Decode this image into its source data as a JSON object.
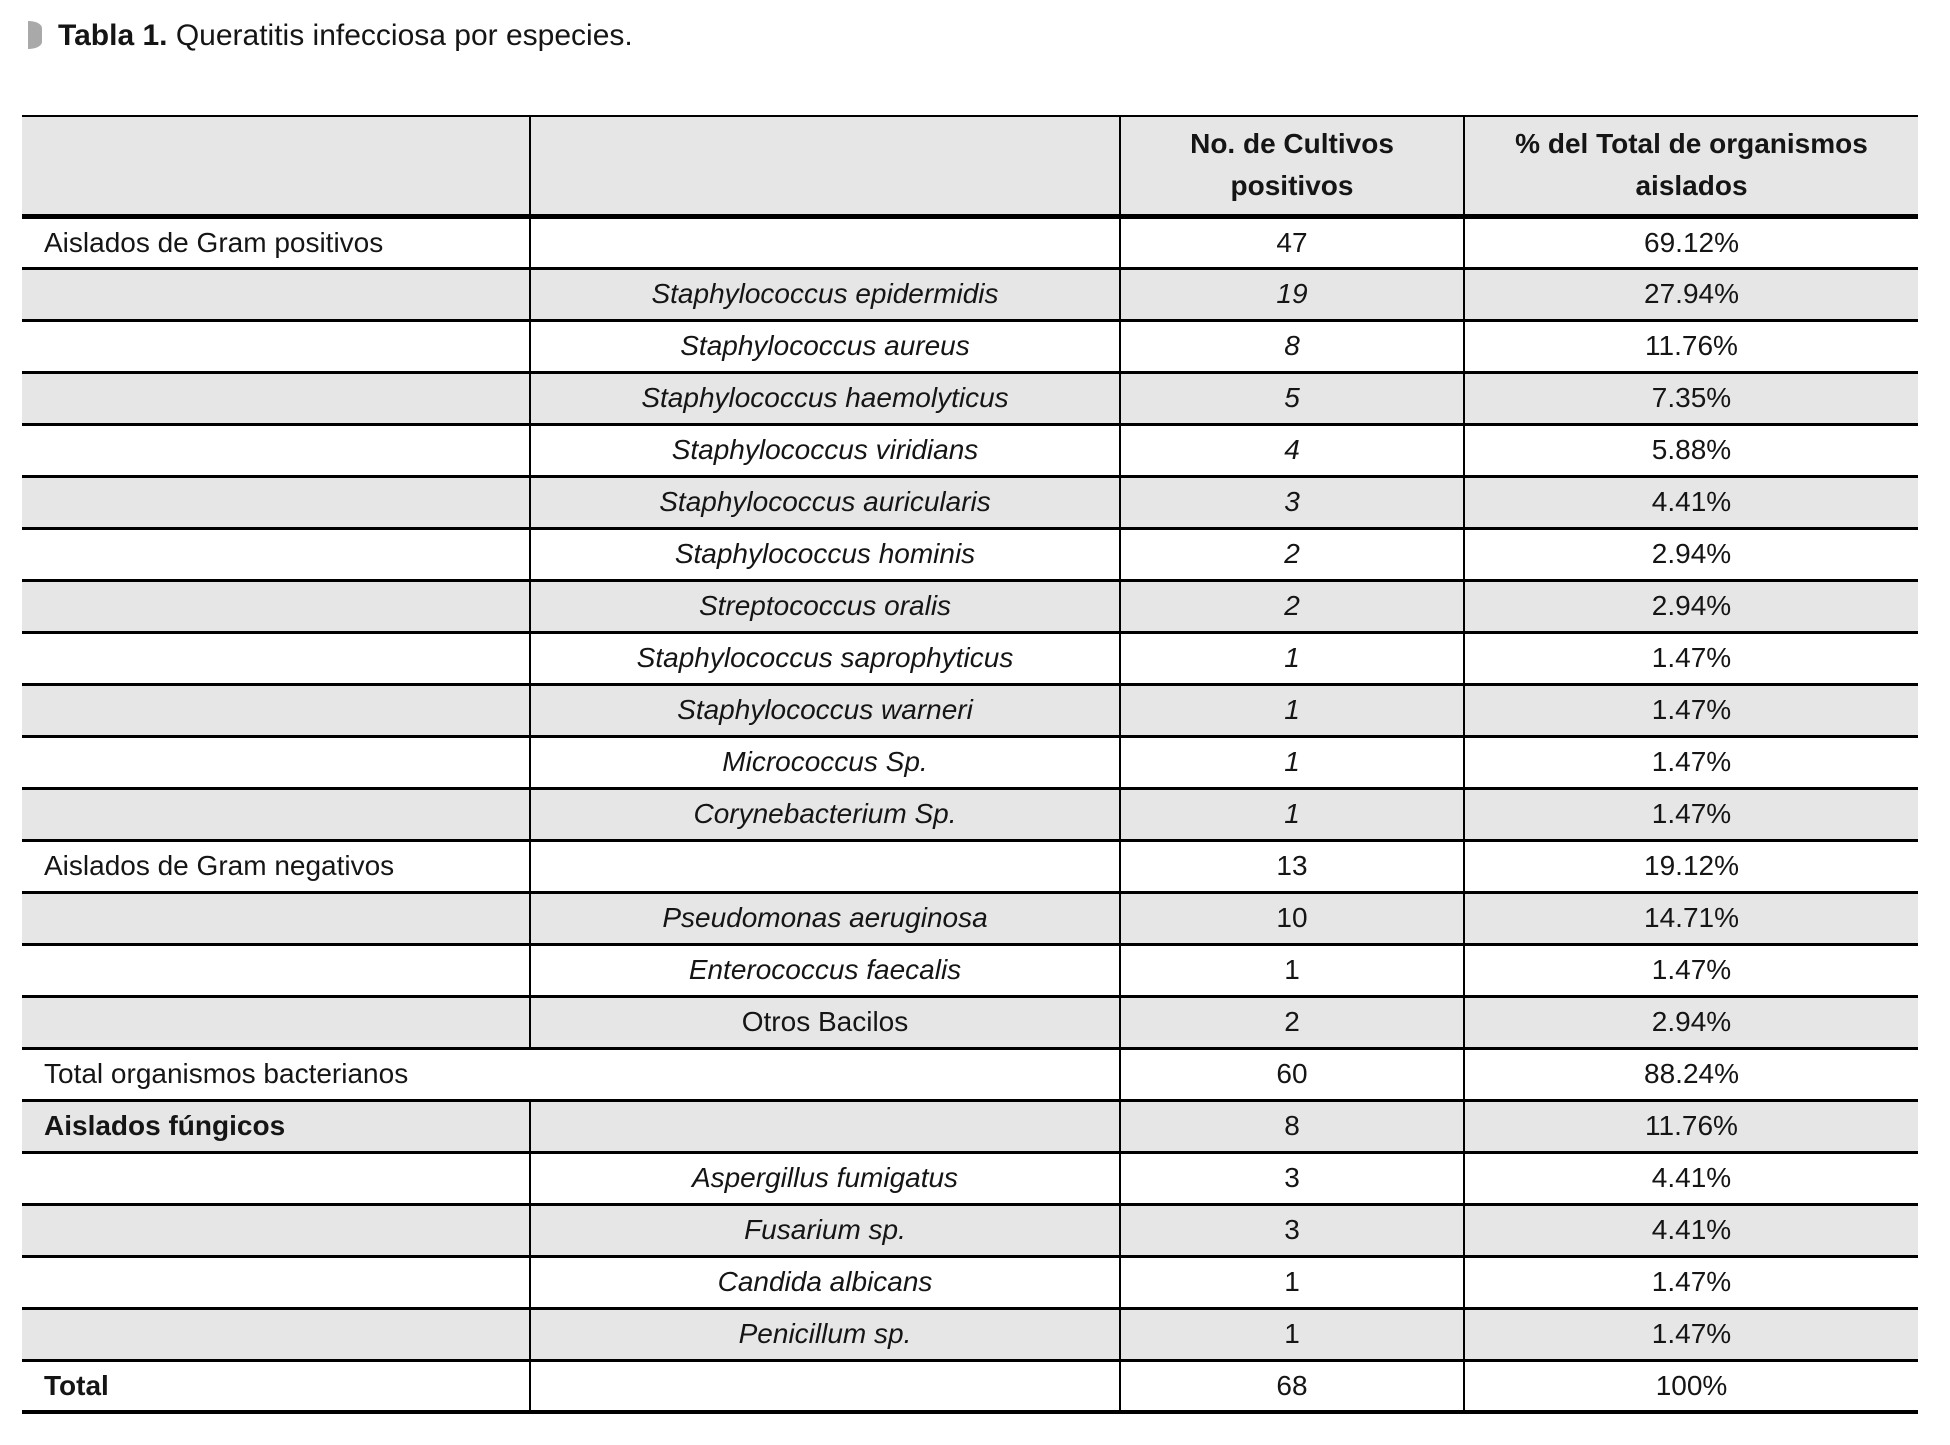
{
  "caption": {
    "label": "Tabla 1.",
    "text": "Queratitis infecciosa por especies."
  },
  "colors": {
    "row_shade": "#e6e6e6",
    "border": "#000000",
    "bullet": "#a9a9a9"
  },
  "table": {
    "header": {
      "count_line1": "No. de Cultivos",
      "count_line2": "positivos",
      "percent_line1": "% del Total de organismos",
      "percent_line2": "aislados"
    },
    "rows": [
      {
        "category": "Aislados de Gram positivos",
        "species": "",
        "count": "47",
        "percent": "69.12%",
        "bold_category": false,
        "species_italic": false,
        "count_italic": false,
        "span2": false
      },
      {
        "category": "",
        "species": "Staphylococcus epidermidis",
        "count": "19",
        "percent": "27.94%",
        "bold_category": false,
        "species_italic": true,
        "count_italic": true,
        "span2": false
      },
      {
        "category": "",
        "species": "Staphylococcus aureus",
        "count": "8",
        "percent": "11.76%",
        "bold_category": false,
        "species_italic": true,
        "count_italic": true,
        "span2": false
      },
      {
        "category": "",
        "species": "Staphylococcus haemolyticus",
        "count": "5",
        "percent": "7.35%",
        "bold_category": false,
        "species_italic": true,
        "count_italic": true,
        "span2": false
      },
      {
        "category": "",
        "species": "Staphylococcus viridians",
        "count": "4",
        "percent": "5.88%",
        "bold_category": false,
        "species_italic": true,
        "count_italic": true,
        "span2": false
      },
      {
        "category": "",
        "species": "Staphylococcus auricularis",
        "count": "3",
        "percent": "4.41%",
        "bold_category": false,
        "species_italic": true,
        "count_italic": true,
        "span2": false
      },
      {
        "category": "",
        "species": "Staphylococcus hominis",
        "count": "2",
        "percent": "2.94%",
        "bold_category": false,
        "species_italic": true,
        "count_italic": true,
        "span2": false
      },
      {
        "category": "",
        "species": "Streptococcus oralis",
        "count": "2",
        "percent": "2.94%",
        "bold_category": false,
        "species_italic": true,
        "count_italic": true,
        "span2": false
      },
      {
        "category": "",
        "species": "Staphylococcus saprophyticus",
        "count": "1",
        "percent": "1.47%",
        "bold_category": false,
        "species_italic": true,
        "count_italic": true,
        "span2": false
      },
      {
        "category": "",
        "species": "Staphylococcus warneri",
        "count": "1",
        "percent": "1.47%",
        "bold_category": false,
        "species_italic": true,
        "count_italic": true,
        "span2": false
      },
      {
        "category": "",
        "species": "Micrococcus Sp.",
        "count": "1",
        "percent": "1.47%",
        "bold_category": false,
        "species_italic": true,
        "count_italic": true,
        "span2": false
      },
      {
        "category": "",
        "species": "Corynebacterium Sp.",
        "count": "1",
        "percent": "1.47%",
        "bold_category": false,
        "species_italic": true,
        "count_italic": true,
        "span2": false
      },
      {
        "category": "Aislados de Gram negativos",
        "species": "",
        "count": "13",
        "percent": "19.12%",
        "bold_category": false,
        "species_italic": false,
        "count_italic": false,
        "span2": false
      },
      {
        "category": "",
        "species": "Pseudomonas aeruginosa",
        "count": "10",
        "percent": "14.71%",
        "bold_category": false,
        "species_italic": true,
        "count_italic": false,
        "span2": false
      },
      {
        "category": "",
        "species": "Enterococcus faecalis",
        "count": "1",
        "percent": "1.47%",
        "bold_category": false,
        "species_italic": true,
        "count_italic": false,
        "span2": false
      },
      {
        "category": "",
        "species": "Otros Bacilos",
        "count": "2",
        "percent": "2.94%",
        "bold_category": false,
        "species_italic": false,
        "count_italic": false,
        "span2": false
      },
      {
        "category": "Total organismos bacterianos",
        "species": "",
        "count": "60",
        "percent": "88.24%",
        "bold_category": false,
        "species_italic": false,
        "count_italic": false,
        "span2": true
      },
      {
        "category": "Aislados fúngicos",
        "species": "",
        "count": "8",
        "percent": "11.76%",
        "bold_category": true,
        "species_italic": false,
        "count_italic": false,
        "span2": false
      },
      {
        "category": "",
        "species": "Aspergillus fumigatus",
        "count": "3",
        "percent": "4.41%",
        "bold_category": false,
        "species_italic": true,
        "count_italic": false,
        "span2": false
      },
      {
        "category": "",
        "species": "Fusarium sp.",
        "count": "3",
        "percent": "4.41%",
        "bold_category": false,
        "species_italic": true,
        "count_italic": false,
        "span2": false
      },
      {
        "category": "",
        "species": "Candida albicans",
        "count": "1",
        "percent": "1.47%",
        "bold_category": false,
        "species_italic": true,
        "count_italic": false,
        "span2": false
      },
      {
        "category": "",
        "species": "Penicillum sp.",
        "count": "1",
        "percent": "1.47%",
        "bold_category": false,
        "species_italic": true,
        "count_italic": false,
        "span2": false
      },
      {
        "category": "Total",
        "species": "",
        "count": "68",
        "percent": "100%",
        "bold_category": true,
        "species_italic": false,
        "count_italic": false,
        "span2": false
      }
    ]
  }
}
